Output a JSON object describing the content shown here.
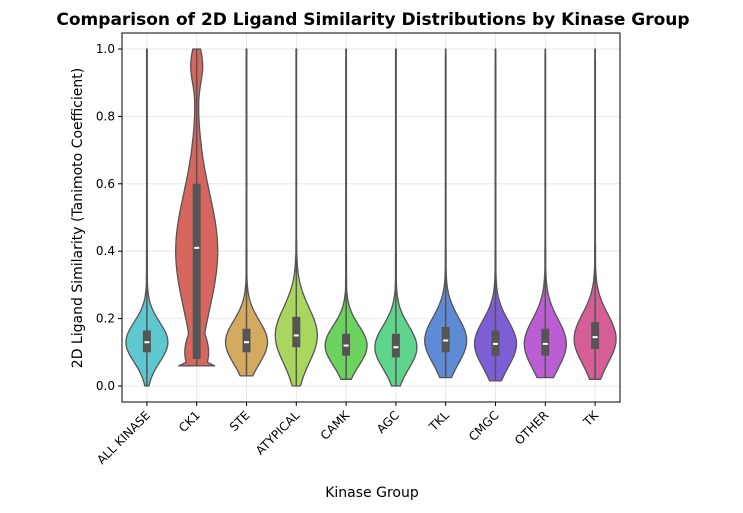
{
  "chart_data": {
    "type": "violin",
    "title": "Comparison of 2D Ligand Similarity Distributions by Kinase Group",
    "xlabel": "Kinase Group",
    "ylabel": "2D Ligand Similarity (Tanimoto Coefficient)",
    "ylim": [
      -0.05,
      1.05
    ],
    "yticks": [
      "0.0",
      "0.2",
      "0.4",
      "0.6",
      "0.8",
      "1.0"
    ],
    "grid": true,
    "categories": [
      "ALL KINASE",
      "CK1",
      "STE",
      "ATYPICAL",
      "CAMK",
      "AGC",
      "TKL",
      "CMGC",
      "OTHER",
      "TK"
    ],
    "colors": [
      "#5ec8d0",
      "#d7665e",
      "#d4a960",
      "#a9d65e",
      "#6cd35e",
      "#5ed48c",
      "#5e8ad6",
      "#7e5ed6",
      "#bb5ed6",
      "#d65e96"
    ],
    "series": [
      {
        "category": "ALL KINASE",
        "min": 0.0,
        "q1": 0.1,
        "median": 0.13,
        "q3": 0.165,
        "max": 1.0,
        "mode": 0.13
      },
      {
        "category": "CK1",
        "min": 0.06,
        "q1": 0.08,
        "median": 0.41,
        "q3": 0.6,
        "max": 1.0,
        "mode": 0.4
      },
      {
        "category": "STE",
        "min": 0.03,
        "q1": 0.1,
        "median": 0.13,
        "q3": 0.17,
        "max": 1.0,
        "mode": 0.13
      },
      {
        "category": "ATYPICAL",
        "min": 0.0,
        "q1": 0.115,
        "median": 0.15,
        "q3": 0.205,
        "max": 1.0,
        "mode": 0.15
      },
      {
        "category": "CAMK",
        "min": 0.02,
        "q1": 0.09,
        "median": 0.12,
        "q3": 0.155,
        "max": 1.0,
        "mode": 0.12
      },
      {
        "category": "AGC",
        "min": 0.0,
        "q1": 0.085,
        "median": 0.115,
        "q3": 0.155,
        "max": 1.0,
        "mode": 0.115
      },
      {
        "category": "TKL",
        "min": 0.025,
        "q1": 0.1,
        "median": 0.135,
        "q3": 0.175,
        "max": 1.0,
        "mode": 0.135
      },
      {
        "category": "CMGC",
        "min": 0.015,
        "q1": 0.09,
        "median": 0.125,
        "q3": 0.165,
        "max": 1.0,
        "mode": 0.125
      },
      {
        "category": "OTHER",
        "min": 0.025,
        "q1": 0.09,
        "median": 0.125,
        "q3": 0.17,
        "max": 1.0,
        "mode": 0.125
      },
      {
        "category": "TK",
        "min": 0.02,
        "q1": 0.11,
        "median": 0.145,
        "q3": 0.19,
        "max": 1.0,
        "mode": 0.14
      }
    ]
  }
}
